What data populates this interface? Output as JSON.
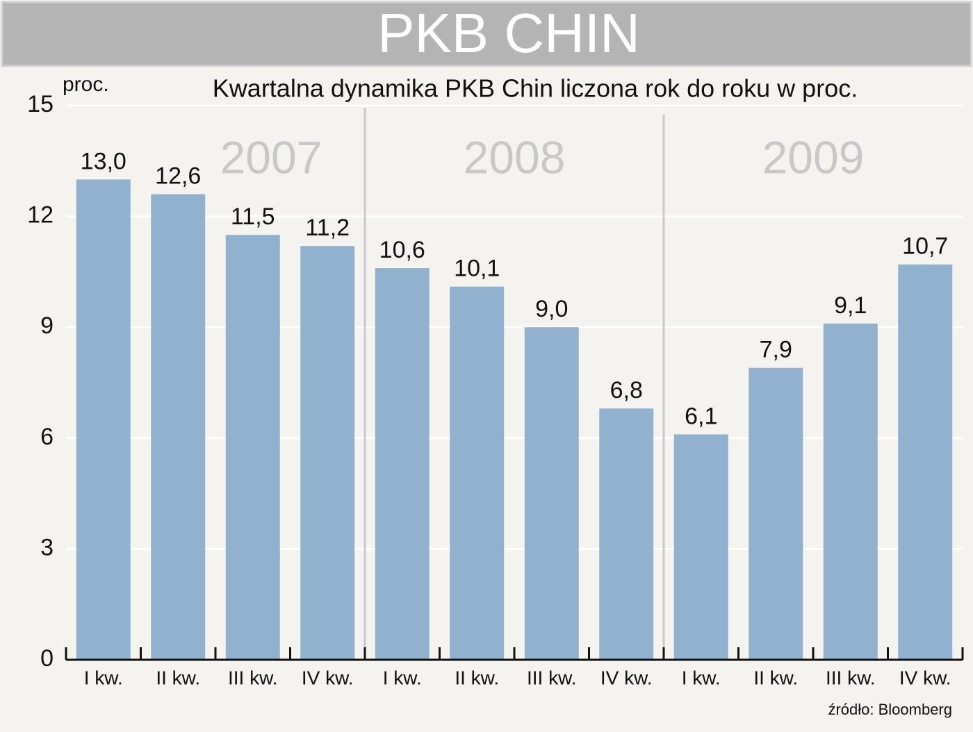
{
  "chart_data": {
    "type": "bar",
    "title": "PKB CHIN",
    "subtitle": "Kwartalna dynamika PKB Chin liczona rok do roku w proc.",
    "y_label": "proc.",
    "source": "źródło: Bloomberg",
    "years": [
      "2007",
      "2008",
      "2009"
    ],
    "categories": [
      "I kw.",
      "II kw.",
      "III kw.",
      "IV kw.",
      "I kw.",
      "II kw.",
      "III kw.",
      "IV kw.",
      "I kw.",
      "II kw.",
      "III kw.",
      "IV kw."
    ],
    "values": [
      13.0,
      12.6,
      11.5,
      11.2,
      10.6,
      10.1,
      9.0,
      6.8,
      6.1,
      7.9,
      9.1,
      10.7
    ],
    "value_labels": [
      "13,0",
      "12,6",
      "11,5",
      "11,2",
      "10,6",
      "10,1",
      "9,0",
      "6,8",
      "6,1",
      "7,9",
      "9,1",
      "10,7"
    ],
    "color": "#92b1cf",
    "ylim": [
      0,
      15
    ],
    "yticks": [
      0,
      3,
      6,
      9,
      12,
      15
    ],
    "grid": true
  }
}
